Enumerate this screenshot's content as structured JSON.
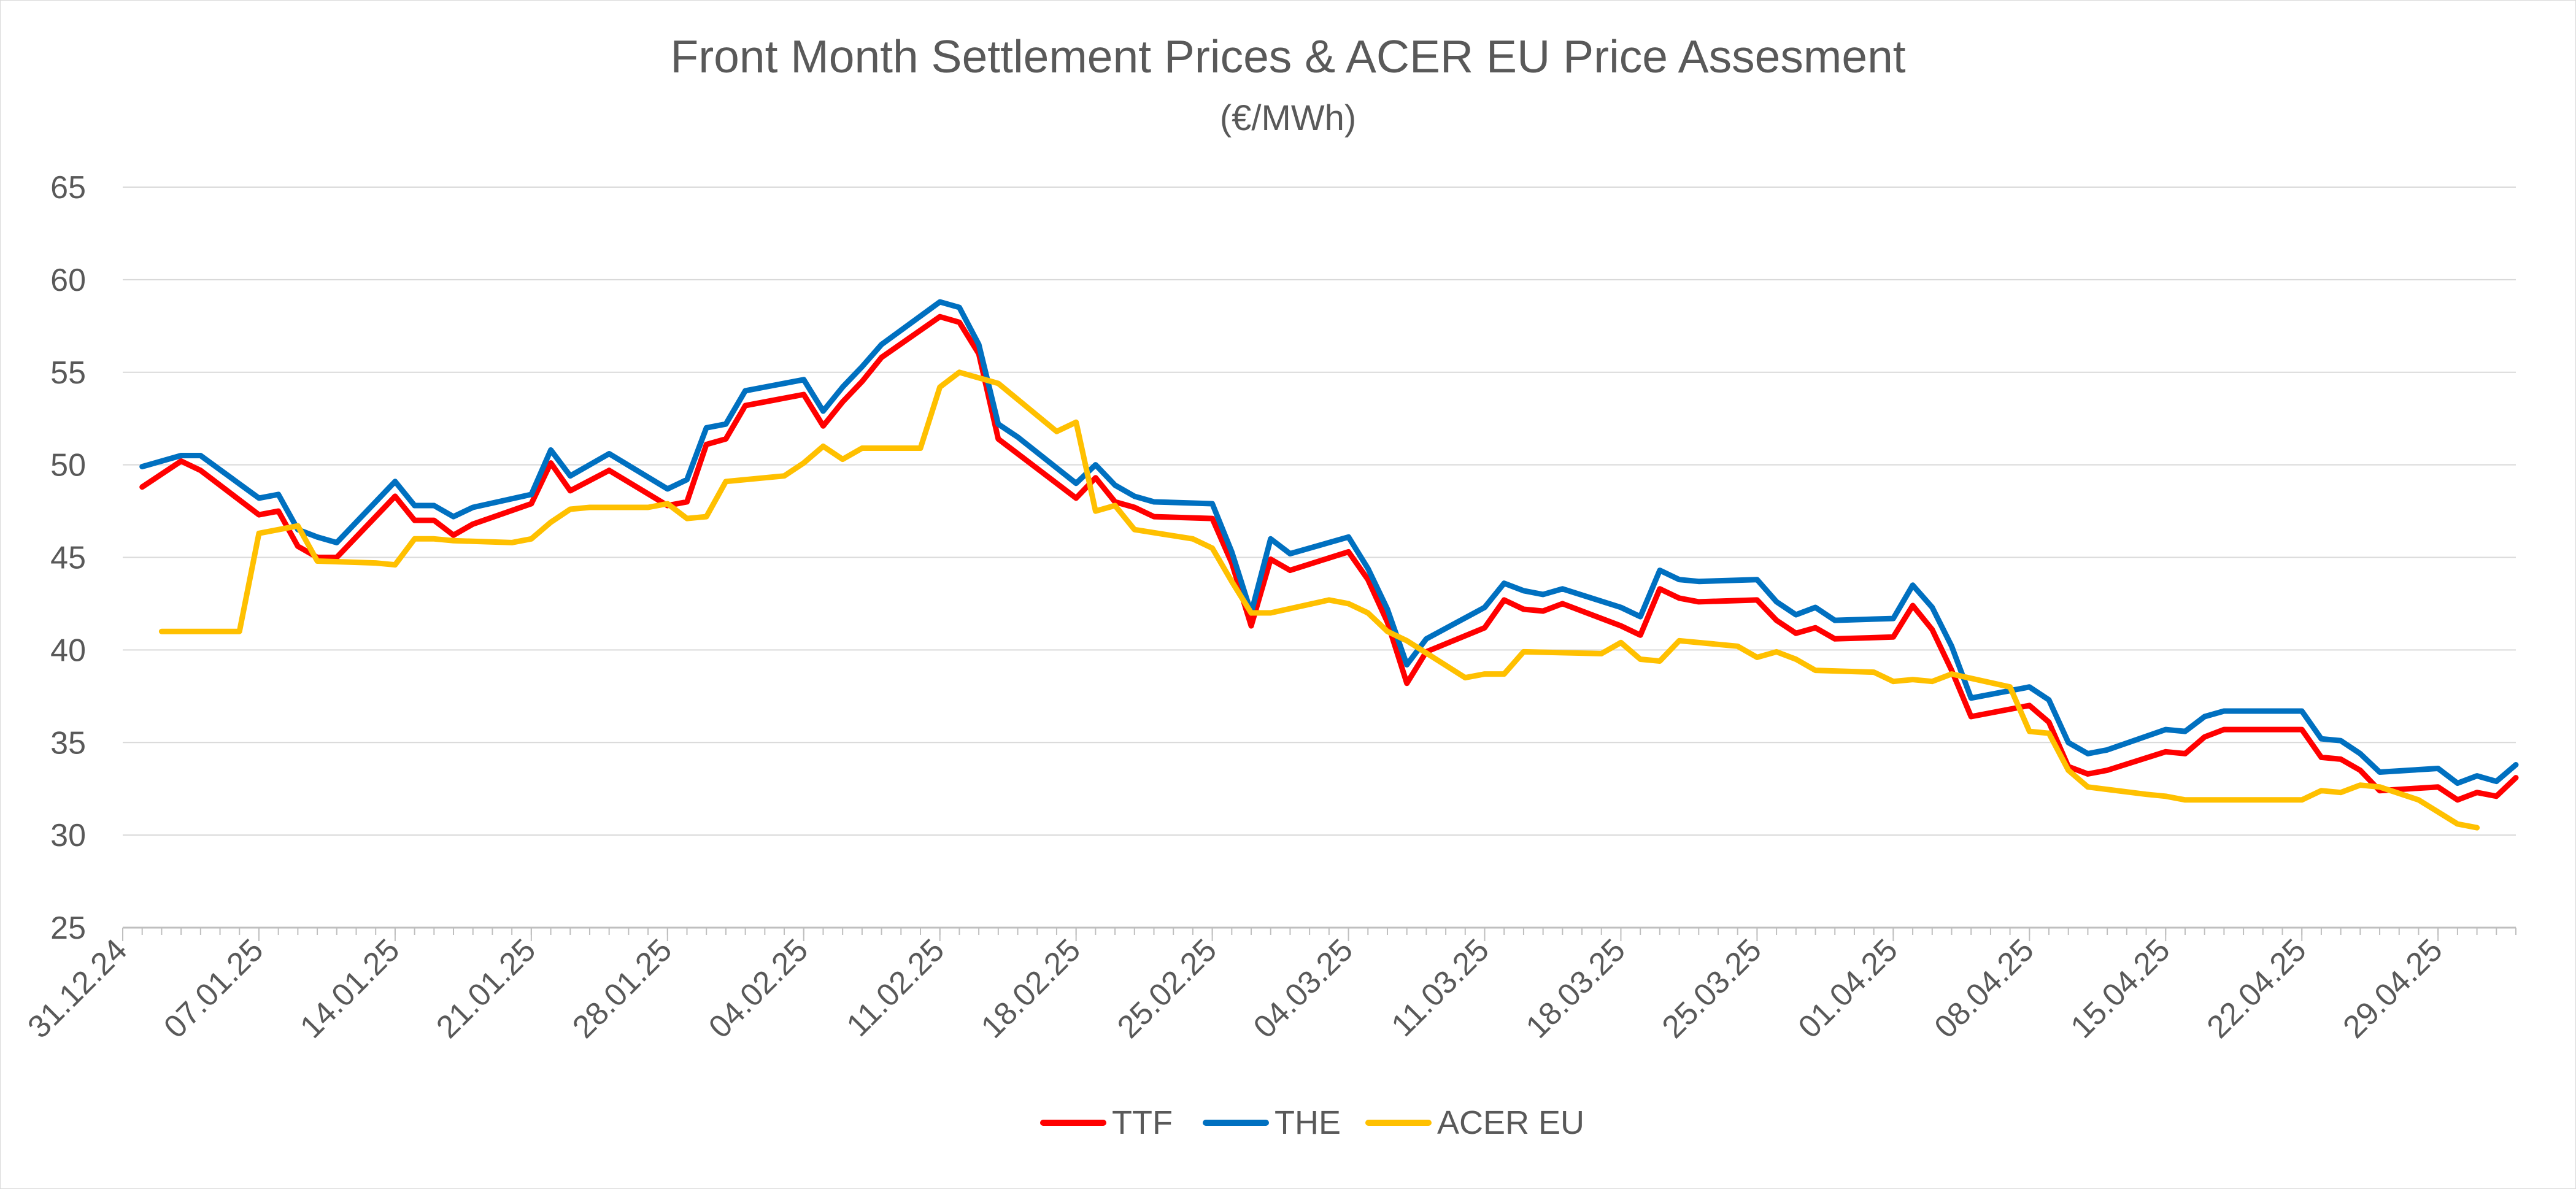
{
  "chart_data": {
    "type": "line",
    "title": "Front Month Settlement Prices & ACER EU Price Assesment",
    "subtitle": "(€/MWh)",
    "xlabel": "",
    "ylabel": "",
    "ylim": [
      25,
      65
    ],
    "yticks": [
      "25",
      "30",
      "35",
      "40",
      "45",
      "50",
      "55",
      "60",
      "65"
    ],
    "xlim": [
      "2024-12-31",
      "2025-05-03"
    ],
    "xticks": [
      {
        "date": "2024-12-31",
        "label": "31.12.24"
      },
      {
        "date": "2025-01-07",
        "label": "07.01.25"
      },
      {
        "date": "2025-01-14",
        "label": "14.01.25"
      },
      {
        "date": "2025-01-21",
        "label": "21.01.25"
      },
      {
        "date": "2025-01-28",
        "label": "28.01.25"
      },
      {
        "date": "2025-02-04",
        "label": "04.02.25"
      },
      {
        "date": "2025-02-11",
        "label": "11.02.25"
      },
      {
        "date": "2025-02-18",
        "label": "18.02.25"
      },
      {
        "date": "2025-02-25",
        "label": "25.02.25"
      },
      {
        "date": "2025-03-04",
        "label": "04.03.25"
      },
      {
        "date": "2025-03-11",
        "label": "11.03.25"
      },
      {
        "date": "2025-03-18",
        "label": "18.03.25"
      },
      {
        "date": "2025-03-25",
        "label": "25.03.25"
      },
      {
        "date": "2025-04-01",
        "label": "01.04.25"
      },
      {
        "date": "2025-04-08",
        "label": "08.04.25"
      },
      {
        "date": "2025-04-15",
        "label": "15.04.25"
      },
      {
        "date": "2025-04-22",
        "label": "22.04.25"
      },
      {
        "date": "2025-04-29",
        "label": "29.04.25"
      }
    ],
    "grid": true,
    "legend_position": "bottom",
    "series": [
      {
        "name": "TTF",
        "color": "#ff0000",
        "points": [
          [
            "2025-01-01",
            48.8
          ],
          [
            "2025-01-03",
            50.2
          ],
          [
            "2025-01-04",
            49.7
          ],
          [
            "2025-01-07",
            47.3
          ],
          [
            "2025-01-08",
            47.5
          ],
          [
            "2025-01-09",
            45.6
          ],
          [
            "2025-01-10",
            45.0
          ],
          [
            "2025-01-11",
            45.0
          ],
          [
            "2025-01-14",
            48.3
          ],
          [
            "2025-01-15",
            47.0
          ],
          [
            "2025-01-16",
            47.0
          ],
          [
            "2025-01-17",
            46.2
          ],
          [
            "2025-01-18",
            46.8
          ],
          [
            "2025-01-21",
            47.9
          ],
          [
            "2025-01-22",
            50.1
          ],
          [
            "2025-01-23",
            48.6
          ],
          [
            "2025-01-25",
            49.7
          ],
          [
            "2025-01-28",
            47.8
          ],
          [
            "2025-01-29",
            48.0
          ],
          [
            "2025-01-30",
            51.1
          ],
          [
            "2025-01-31",
            51.4
          ],
          [
            "2025-02-01",
            53.2
          ],
          [
            "2025-02-04",
            53.8
          ],
          [
            "2025-02-05",
            52.1
          ],
          [
            "2025-02-06",
            53.4
          ],
          [
            "2025-02-07",
            54.5
          ],
          [
            "2025-02-08",
            55.8
          ],
          [
            "2025-02-11",
            58.0
          ],
          [
            "2025-02-12",
            57.7
          ],
          [
            "2025-02-13",
            56.0
          ],
          [
            "2025-02-14",
            51.4
          ],
          [
            "2025-02-15",
            50.6
          ],
          [
            "2025-02-18",
            48.2
          ],
          [
            "2025-02-19",
            49.3
          ],
          [
            "2025-02-20",
            48.0
          ],
          [
            "2025-02-21",
            47.7
          ],
          [
            "2025-02-22",
            47.2
          ],
          [
            "2025-02-25",
            47.1
          ],
          [
            "2025-02-26",
            44.7
          ],
          [
            "2025-02-27",
            41.3
          ],
          [
            "2025-02-28",
            44.9
          ],
          [
            "2025-03-01",
            44.3
          ],
          [
            "2025-03-04",
            45.3
          ],
          [
            "2025-03-05",
            43.8
          ],
          [
            "2025-03-06",
            41.5
          ],
          [
            "2025-03-07",
            38.2
          ],
          [
            "2025-03-08",
            39.9
          ],
          [
            "2025-03-11",
            41.2
          ],
          [
            "2025-03-12",
            42.7
          ],
          [
            "2025-03-13",
            42.2
          ],
          [
            "2025-03-14",
            42.1
          ],
          [
            "2025-03-15",
            42.5
          ],
          [
            "2025-03-18",
            41.3
          ],
          [
            "2025-03-19",
            40.8
          ],
          [
            "2025-03-20",
            43.3
          ],
          [
            "2025-03-21",
            42.8
          ],
          [
            "2025-03-22",
            42.6
          ],
          [
            "2025-03-25",
            42.7
          ],
          [
            "2025-03-26",
            41.6
          ],
          [
            "2025-03-27",
            40.9
          ],
          [
            "2025-03-28",
            41.2
          ],
          [
            "2025-03-29",
            40.6
          ],
          [
            "2025-04-01",
            40.7
          ],
          [
            "2025-04-02",
            42.4
          ],
          [
            "2025-04-03",
            41.1
          ],
          [
            "2025-04-04",
            38.9
          ],
          [
            "2025-04-05",
            36.4
          ],
          [
            "2025-04-08",
            37.0
          ],
          [
            "2025-04-09",
            36.1
          ],
          [
            "2025-04-10",
            33.7
          ],
          [
            "2025-04-11",
            33.3
          ],
          [
            "2025-04-12",
            33.5
          ],
          [
            "2025-04-15",
            34.5
          ],
          [
            "2025-04-16",
            34.4
          ],
          [
            "2025-04-17",
            35.3
          ],
          [
            "2025-04-18",
            35.7
          ],
          [
            "2025-04-19",
            35.7
          ],
          [
            "2025-04-22",
            35.7
          ],
          [
            "2025-04-23",
            34.2
          ],
          [
            "2025-04-24",
            34.1
          ],
          [
            "2025-04-25",
            33.5
          ],
          [
            "2025-04-26",
            32.4
          ],
          [
            "2025-04-29",
            32.6
          ],
          [
            "2025-04-30",
            31.9
          ],
          [
            "2025-05-01",
            32.3
          ],
          [
            "2025-05-02",
            32.1
          ],
          [
            "2025-05-03",
            33.1
          ]
        ]
      },
      {
        "name": "THE",
        "color": "#0070c0",
        "points": [
          [
            "2025-01-01",
            49.9
          ],
          [
            "2025-01-03",
            50.5
          ],
          [
            "2025-01-04",
            50.5
          ],
          [
            "2025-01-07",
            48.2
          ],
          [
            "2025-01-08",
            48.4
          ],
          [
            "2025-01-09",
            46.5
          ],
          [
            "2025-01-10",
            46.1
          ],
          [
            "2025-01-11",
            45.8
          ],
          [
            "2025-01-14",
            49.1
          ],
          [
            "2025-01-15",
            47.8
          ],
          [
            "2025-01-16",
            47.8
          ],
          [
            "2025-01-17",
            47.2
          ],
          [
            "2025-01-18",
            47.7
          ],
          [
            "2025-01-21",
            48.4
          ],
          [
            "2025-01-22",
            50.8
          ],
          [
            "2025-01-23",
            49.4
          ],
          [
            "2025-01-25",
            50.6
          ],
          [
            "2025-01-28",
            48.7
          ],
          [
            "2025-01-29",
            49.2
          ],
          [
            "2025-01-30",
            52.0
          ],
          [
            "2025-01-31",
            52.2
          ],
          [
            "2025-02-01",
            54.0
          ],
          [
            "2025-02-04",
            54.6
          ],
          [
            "2025-02-05",
            52.9
          ],
          [
            "2025-02-06",
            54.2
          ],
          [
            "2025-02-07",
            55.3
          ],
          [
            "2025-02-08",
            56.5
          ],
          [
            "2025-02-11",
            58.8
          ],
          [
            "2025-02-12",
            58.5
          ],
          [
            "2025-02-13",
            56.5
          ],
          [
            "2025-02-14",
            52.2
          ],
          [
            "2025-02-15",
            51.5
          ],
          [
            "2025-02-18",
            49.0
          ],
          [
            "2025-02-19",
            50.0
          ],
          [
            "2025-02-20",
            48.9
          ],
          [
            "2025-02-21",
            48.3
          ],
          [
            "2025-02-22",
            48.0
          ],
          [
            "2025-02-25",
            47.9
          ],
          [
            "2025-02-26",
            45.3
          ],
          [
            "2025-02-27",
            42.0
          ],
          [
            "2025-02-28",
            46.0
          ],
          [
            "2025-03-01",
            45.2
          ],
          [
            "2025-03-04",
            46.1
          ],
          [
            "2025-03-05",
            44.4
          ],
          [
            "2025-03-06",
            42.2
          ],
          [
            "2025-03-07",
            39.2
          ],
          [
            "2025-03-08",
            40.6
          ],
          [
            "2025-03-11",
            42.3
          ],
          [
            "2025-03-12",
            43.6
          ],
          [
            "2025-03-13",
            43.2
          ],
          [
            "2025-03-14",
            43.0
          ],
          [
            "2025-03-15",
            43.3
          ],
          [
            "2025-03-18",
            42.3
          ],
          [
            "2025-03-19",
            41.8
          ],
          [
            "2025-03-20",
            44.3
          ],
          [
            "2025-03-21",
            43.8
          ],
          [
            "2025-03-22",
            43.7
          ],
          [
            "2025-03-25",
            43.8
          ],
          [
            "2025-03-26",
            42.6
          ],
          [
            "2025-03-27",
            41.9
          ],
          [
            "2025-03-28",
            42.3
          ],
          [
            "2025-03-29",
            41.6
          ],
          [
            "2025-04-01",
            41.7
          ],
          [
            "2025-04-02",
            43.5
          ],
          [
            "2025-04-03",
            42.3
          ],
          [
            "2025-04-04",
            40.2
          ],
          [
            "2025-04-05",
            37.4
          ],
          [
            "2025-04-08",
            38.0
          ],
          [
            "2025-04-09",
            37.3
          ],
          [
            "2025-04-10",
            35.0
          ],
          [
            "2025-04-11",
            34.4
          ],
          [
            "2025-04-12",
            34.6
          ],
          [
            "2025-04-15",
            35.7
          ],
          [
            "2025-04-16",
            35.6
          ],
          [
            "2025-04-17",
            36.4
          ],
          [
            "2025-04-18",
            36.7
          ],
          [
            "2025-04-19",
            36.7
          ],
          [
            "2025-04-22",
            36.7
          ],
          [
            "2025-04-23",
            35.2
          ],
          [
            "2025-04-24",
            35.1
          ],
          [
            "2025-04-25",
            34.4
          ],
          [
            "2025-04-26",
            33.4
          ],
          [
            "2025-04-29",
            33.6
          ],
          [
            "2025-04-30",
            32.8
          ],
          [
            "2025-05-01",
            33.2
          ],
          [
            "2025-05-02",
            32.9
          ],
          [
            "2025-05-03",
            33.8
          ]
        ]
      },
      {
        "name": "ACER EU",
        "color": "#ffc000",
        "points": [
          [
            "2025-01-02",
            41.0
          ],
          [
            "2025-01-06",
            41.0
          ],
          [
            "2025-01-07",
            46.3
          ],
          [
            "2025-01-09",
            46.7
          ],
          [
            "2025-01-10",
            44.8
          ],
          [
            "2025-01-13",
            44.7
          ],
          [
            "2025-01-14",
            44.6
          ],
          [
            "2025-01-15",
            46.0
          ],
          [
            "2025-01-16",
            46.0
          ],
          [
            "2025-01-17",
            45.9
          ],
          [
            "2025-01-20",
            45.8
          ],
          [
            "2025-01-21",
            46.0
          ],
          [
            "2025-01-22",
            46.9
          ],
          [
            "2025-01-23",
            47.6
          ],
          [
            "2025-01-24",
            47.7
          ],
          [
            "2025-01-27",
            47.7
          ],
          [
            "2025-01-28",
            47.9
          ],
          [
            "2025-01-29",
            47.1
          ],
          [
            "2025-01-30",
            47.2
          ],
          [
            "2025-01-31",
            49.1
          ],
          [
            "2025-02-03",
            49.4
          ],
          [
            "2025-02-04",
            50.1
          ],
          [
            "2025-02-05",
            51.0
          ],
          [
            "2025-02-06",
            50.3
          ],
          [
            "2025-02-07",
            50.9
          ],
          [
            "2025-02-10",
            50.9
          ],
          [
            "2025-02-11",
            54.2
          ],
          [
            "2025-02-12",
            55.0
          ],
          [
            "2025-02-14",
            54.4
          ],
          [
            "2025-02-17",
            51.8
          ],
          [
            "2025-02-18",
            52.3
          ],
          [
            "2025-02-19",
            47.5
          ],
          [
            "2025-02-20",
            47.8
          ],
          [
            "2025-02-21",
            46.5
          ],
          [
            "2025-02-24",
            46.0
          ],
          [
            "2025-02-25",
            45.5
          ],
          [
            "2025-02-26",
            43.7
          ],
          [
            "2025-02-27",
            42.0
          ],
          [
            "2025-02-28",
            42.0
          ],
          [
            "2025-03-03",
            42.7
          ],
          [
            "2025-03-04",
            42.5
          ],
          [
            "2025-03-05",
            42.0
          ],
          [
            "2025-03-06",
            41.0
          ],
          [
            "2025-03-07",
            40.5
          ],
          [
            "2025-03-10",
            38.5
          ],
          [
            "2025-03-11",
            38.7
          ],
          [
            "2025-03-12",
            38.7
          ],
          [
            "2025-03-13",
            39.9
          ],
          [
            "2025-03-17",
            39.8
          ],
          [
            "2025-03-18",
            40.4
          ],
          [
            "2025-03-19",
            39.5
          ],
          [
            "2025-03-20",
            39.4
          ],
          [
            "2025-03-21",
            40.5
          ],
          [
            "2025-03-24",
            40.2
          ],
          [
            "2025-03-25",
            39.6
          ],
          [
            "2025-03-26",
            39.9
          ],
          [
            "2025-03-27",
            39.5
          ],
          [
            "2025-03-28",
            38.9
          ],
          [
            "2025-03-31",
            38.8
          ],
          [
            "2025-04-01",
            38.3
          ],
          [
            "2025-04-02",
            38.4
          ],
          [
            "2025-04-03",
            38.3
          ],
          [
            "2025-04-04",
            38.7
          ],
          [
            "2025-04-07",
            38.0
          ],
          [
            "2025-04-08",
            35.6
          ],
          [
            "2025-04-09",
            35.5
          ],
          [
            "2025-04-10",
            33.5
          ],
          [
            "2025-04-11",
            32.6
          ],
          [
            "2025-04-14",
            32.2
          ],
          [
            "2025-04-15",
            32.1
          ],
          [
            "2025-04-16",
            31.9
          ],
          [
            "2025-04-17",
            31.9
          ],
          [
            "2025-04-22",
            31.9
          ],
          [
            "2025-04-23",
            32.4
          ],
          [
            "2025-04-24",
            32.3
          ],
          [
            "2025-04-25",
            32.7
          ],
          [
            "2025-04-26",
            32.6
          ],
          [
            "2025-04-28",
            31.9
          ],
          [
            "2025-04-30",
            30.6
          ],
          [
            "2025-05-01",
            30.4
          ]
        ]
      }
    ]
  }
}
